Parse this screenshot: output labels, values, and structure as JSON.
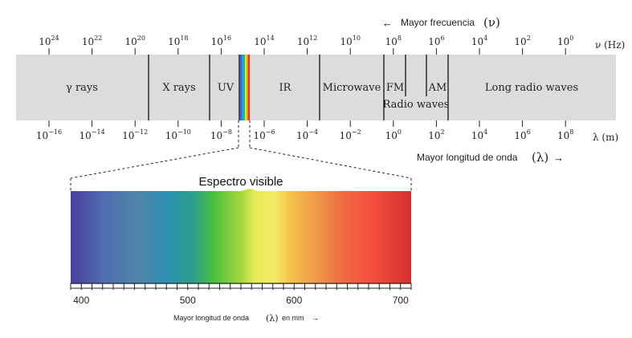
{
  "frequency_title": "Mayor frecuencia",
  "frequency_symbol": "(ν)",
  "frequency_unit_label": "ν (Hz)",
  "frequency_ticks": [
    {
      "base": "10",
      "exp": "24"
    },
    {
      "base": "10",
      "exp": "22"
    },
    {
      "base": "10",
      "exp": "20"
    },
    {
      "base": "10",
      "exp": "18"
    },
    {
      "base": "10",
      "exp": "16"
    },
    {
      "base": "10",
      "exp": "14"
    },
    {
      "base": "10",
      "exp": "12"
    },
    {
      "base": "10",
      "exp": "10"
    },
    {
      "base": "10",
      "exp": "8"
    },
    {
      "base": "10",
      "exp": "6"
    },
    {
      "base": "10",
      "exp": "4"
    },
    {
      "base": "10",
      "exp": "2"
    },
    {
      "base": "10",
      "exp": "0"
    }
  ],
  "wavelength_unit_label": "λ (m)",
  "wavelength_ticks": [
    {
      "base": "10",
      "exp": "−16"
    },
    {
      "base": "10",
      "exp": "−14"
    },
    {
      "base": "10",
      "exp": "−12"
    },
    {
      "base": "10",
      "exp": "−10"
    },
    {
      "base": "10",
      "exp": "−8"
    },
    {
      "base": "10",
      "exp": "−6"
    },
    {
      "base": "10",
      "exp": "−4"
    },
    {
      "base": "10",
      "exp": "−2"
    },
    {
      "base": "10",
      "exp": "0"
    },
    {
      "base": "10",
      "exp": "2"
    },
    {
      "base": "10",
      "exp": "4"
    },
    {
      "base": "10",
      "exp": "6"
    },
    {
      "base": "10",
      "exp": "8"
    }
  ],
  "wavelength_title": "Mayor longitud de onda",
  "wavelength_symbol": "(λ)",
  "bands": [
    "γ rays",
    "X rays",
    "UV",
    "IR",
    "Microwave",
    "FM",
    "AM",
    "Long radio waves"
  ],
  "radio_waves_label": "Radio waves",
  "visible_title": "Espectro visible",
  "visible_ticks": [
    "400",
    "500",
    "600",
    "700"
  ],
  "visible_range_nm": [
    390,
    710
  ],
  "visible_axis_title": "Mayor longitud de onda",
  "visible_axis_symbol": "(λ)",
  "visible_axis_unit": "en mm",
  "colors": {
    "band_fill": "#dcdcdc",
    "divider": "#000000",
    "spectrum_stops": [
      "#4a3f9e",
      "#4f73b2",
      "#2b8fb0",
      "#4dbf3e",
      "#c8e03a",
      "#f2ec5c",
      "#f5c64c",
      "#ef7e44",
      "#f5503e",
      "#d42f2f"
    ]
  }
}
